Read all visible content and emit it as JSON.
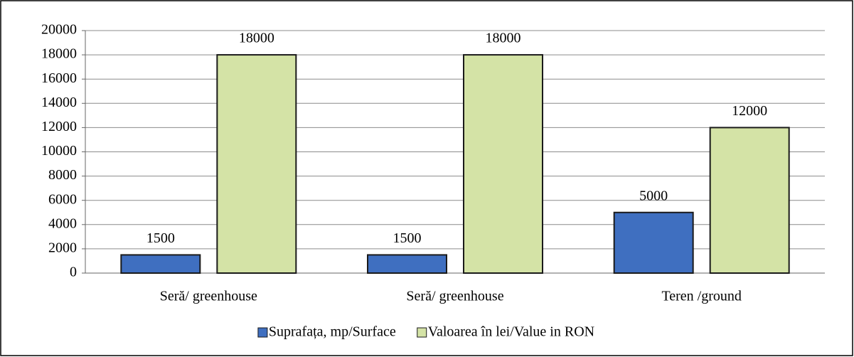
{
  "chart_data": {
    "type": "bar",
    "categories": [
      "Seră/ greenhouse",
      "Seră/ greenhouse",
      "Teren /ground"
    ],
    "series": [
      {
        "name": "Suprafața, mp/Surface",
        "color": "#3f6fc0",
        "values": [
          1500,
          1500,
          5000
        ]
      },
      {
        "name": "Valoarea în lei/Value in RON",
        "color": "#d4e3a6",
        "values": [
          18000,
          18000,
          12000
        ]
      }
    ],
    "ylim": [
      0,
      20000
    ],
    "yticks": [
      0,
      2000,
      4000,
      6000,
      8000,
      10000,
      12000,
      14000,
      16000,
      18000,
      20000
    ],
    "grid": true,
    "legend": "bottom"
  }
}
